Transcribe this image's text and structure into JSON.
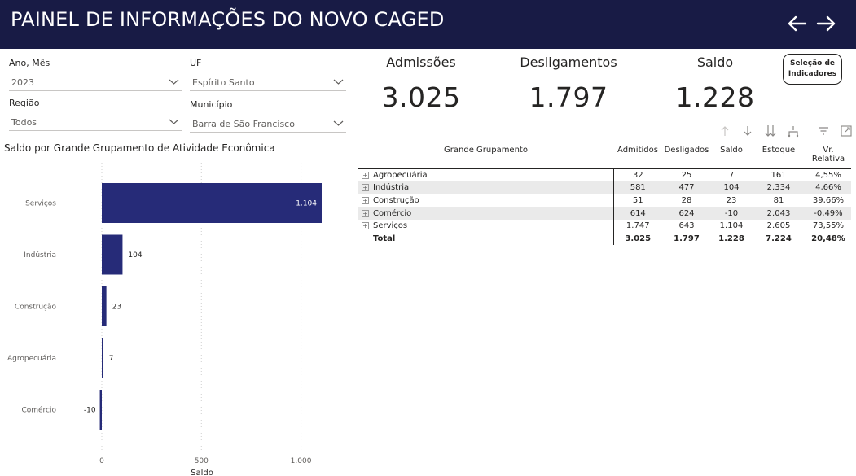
{
  "header": {
    "title": "PAINEL DE INFORMAÇÕES DO NOVO CAGED"
  },
  "filters": [
    {
      "label": "Ano, Mês",
      "value": "2023"
    },
    {
      "label": "UF",
      "value": "Espírito Santo"
    },
    {
      "label": "Região",
      "value": "Todos"
    },
    {
      "label": "Município",
      "value": "Barra de São Francisco"
    }
  ],
  "kpis": [
    {
      "label": "Admissões",
      "value": "3.025"
    },
    {
      "label": "Desligamentos",
      "value": "1.797"
    },
    {
      "label": "Saldo",
      "value": "1.228"
    }
  ],
  "selection_button": {
    "line1": "Seleção de",
    "line2": "Indicadores"
  },
  "chart_title": "Saldo por Grande Grupamento de Atividade Econômica",
  "chart_data": {
    "type": "bar",
    "orientation": "horizontal",
    "title": "Saldo por Grande Grupamento de Atividade Econômica",
    "categories": [
      "Serviços",
      "Indústria",
      "Construção",
      "Agropecuária",
      "Comércio"
    ],
    "values": [
      1104,
      104,
      23,
      7,
      -10
    ],
    "value_labels": [
      "1.104",
      "104",
      "23",
      "7",
      "-10"
    ],
    "xlabel": "Saldo",
    "ylabel": "",
    "xlim": [
      0,
      1104
    ],
    "ticks": [
      0,
      500,
      1000
    ],
    "tick_labels": [
      "0",
      "500",
      "1.000"
    ],
    "grid": true,
    "bar_color": "#262b78"
  },
  "table": {
    "headers": [
      "Grande Grupamento",
      "Admitidos",
      "Desligados",
      "Saldo",
      "Estoque",
      "Vr. Relativa"
    ],
    "rows": [
      {
        "name": "Agropecuária",
        "cells": [
          "32",
          "25",
          "7",
          "161",
          "4,55%"
        ]
      },
      {
        "name": "Indústria",
        "cells": [
          "581",
          "477",
          "104",
          "2.334",
          "4,66%"
        ]
      },
      {
        "name": "Construção",
        "cells": [
          "51",
          "28",
          "23",
          "81",
          "39,66%"
        ]
      },
      {
        "name": "Comércio",
        "cells": [
          "614",
          "624",
          "-10",
          "2.043",
          "-0,49%"
        ]
      },
      {
        "name": "Serviços",
        "cells": [
          "1.747",
          "643",
          "1.104",
          "2.605",
          "73,55%"
        ]
      }
    ],
    "total": {
      "name": "Total",
      "cells": [
        "3.025",
        "1.797",
        "1.228",
        "7.224",
        "20,48%"
      ]
    }
  },
  "colors": {
    "header_bg": "#181b45",
    "bar": "#262b78",
    "row_shade": "#eaeaea"
  },
  "icons": [
    "arrow-left-icon",
    "arrow-right-icon",
    "chevron-down-icon",
    "expand-plus-icon",
    "drill-up-icon",
    "drill-down-icon",
    "expand-all-icon",
    "hierarchy-icon",
    "filter-icon",
    "focus-mode-icon"
  ]
}
